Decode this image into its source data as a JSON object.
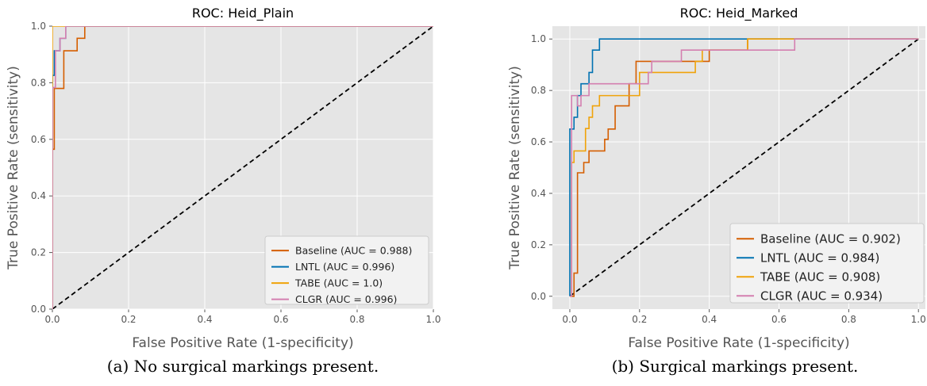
{
  "captions": {
    "a": "(a) No surgical markings present.",
    "b": "(b) Surgical markings present."
  },
  "chart_data": [
    {
      "type": "line",
      "title": "ROC: Heid_Plain",
      "xlabel": "False Positive Rate (1-specificity)",
      "ylabel": "True Positive Rate (sensitivity)",
      "xlim": [
        0,
        1
      ],
      "ylim": [
        0,
        1
      ],
      "xticks": [
        "0.0",
        "0.2",
        "0.4",
        "0.6",
        "0.8",
        "1.0"
      ],
      "yticks": [
        "0.0",
        "0.2",
        "0.4",
        "0.6",
        "0.8",
        "1.0"
      ],
      "grid": true,
      "legend": "lower-right",
      "series": [
        {
          "name": "Baseline (AUC = 0.988)",
          "color": "#d55e00",
          "points": [
            [
              0,
              0
            ],
            [
              0,
              0.565
            ],
            [
              0.005,
              0.565
            ],
            [
              0.005,
              0.78
            ],
            [
              0.03,
              0.78
            ],
            [
              0.03,
              0.913
            ],
            [
              0.065,
              0.913
            ],
            [
              0.065,
              0.957
            ],
            [
              0.085,
              0.957
            ],
            [
              0.085,
              1.0
            ],
            [
              1,
              1
            ]
          ]
        },
        {
          "name": "LNTL (AUC = 0.996)",
          "color": "#0072b2",
          "points": [
            [
              0,
              0
            ],
            [
              0,
              0.826
            ],
            [
              0.005,
              0.826
            ],
            [
              0.005,
              0.913
            ],
            [
              0.02,
              0.913
            ],
            [
              0.02,
              0.957
            ],
            [
              0.035,
              0.957
            ],
            [
              0.035,
              1.0
            ],
            [
              1,
              1
            ]
          ]
        },
        {
          "name": "TABE (AUC = 1.0)",
          "color": "#f0a30a",
          "points": [
            [
              0,
              0
            ],
            [
              0,
              1.0
            ],
            [
              1,
              1
            ]
          ]
        },
        {
          "name": "CLGR (AUC = 0.996)",
          "color": "#d47fb0",
          "points": [
            [
              0,
              0
            ],
            [
              0,
              0.783
            ],
            [
              0.008,
              0.783
            ],
            [
              0.008,
              0.913
            ],
            [
              0.02,
              0.913
            ],
            [
              0.02,
              0.957
            ],
            [
              0.035,
              0.957
            ],
            [
              0.035,
              1.0
            ],
            [
              1,
              1
            ]
          ]
        }
      ]
    },
    {
      "type": "line",
      "title": "ROC: Heid_Marked",
      "xlabel": "False Positive Rate (1-specificity)",
      "ylabel": "True Positive Rate (sensitivity)",
      "xlim": [
        -0.05,
        1.02
      ],
      "ylim": [
        -0.05,
        1.05
      ],
      "xticks": [
        "0.0",
        "0.2",
        "0.4",
        "0.6",
        "0.8",
        "1.0"
      ],
      "yticks": [
        "0.0",
        "0.2",
        "0.4",
        "0.6",
        "0.8",
        "1.0"
      ],
      "grid": true,
      "legend": "lower-right",
      "series": [
        {
          "name": "Baseline (AUC = 0.902)",
          "color": "#d55e00",
          "points": [
            [
              0,
              0
            ],
            [
              0.012,
              0
            ],
            [
              0.012,
              0.09
            ],
            [
              0.022,
              0.09
            ],
            [
              0.022,
              0.48
            ],
            [
              0.04,
              0.48
            ],
            [
              0.04,
              0.52
            ],
            [
              0.055,
              0.52
            ],
            [
              0.055,
              0.565
            ],
            [
              0.1,
              0.565
            ],
            [
              0.1,
              0.61
            ],
            [
              0.11,
              0.61
            ],
            [
              0.11,
              0.65
            ],
            [
              0.13,
              0.65
            ],
            [
              0.13,
              0.74
            ],
            [
              0.17,
              0.74
            ],
            [
              0.17,
              0.826
            ],
            [
              0.19,
              0.826
            ],
            [
              0.19,
              0.913
            ],
            [
              0.4,
              0.913
            ],
            [
              0.4,
              0.957
            ],
            [
              0.51,
              0.957
            ],
            [
              0.51,
              1.0
            ],
            [
              1,
              1
            ]
          ]
        },
        {
          "name": "LNTL (AUC = 0.984)",
          "color": "#0072b2",
          "points": [
            [
              0,
              0
            ],
            [
              0,
              0.65
            ],
            [
              0.012,
              0.65
            ],
            [
              0.012,
              0.696
            ],
            [
              0.022,
              0.696
            ],
            [
              0.022,
              0.78
            ],
            [
              0.032,
              0.78
            ],
            [
              0.032,
              0.826
            ],
            [
              0.055,
              0.826
            ],
            [
              0.055,
              0.87
            ],
            [
              0.065,
              0.87
            ],
            [
              0.065,
              0.957
            ],
            [
              0.085,
              0.957
            ],
            [
              0.085,
              1.0
            ],
            [
              1,
              1
            ]
          ]
        },
        {
          "name": "TABE (AUC = 0.908)",
          "color": "#f0a30a",
          "points": [
            [
              0,
              0
            ],
            [
              0.005,
              0
            ],
            [
              0.005,
              0.52
            ],
            [
              0.012,
              0.52
            ],
            [
              0.012,
              0.565
            ],
            [
              0.045,
              0.565
            ],
            [
              0.045,
              0.652
            ],
            [
              0.055,
              0.652
            ],
            [
              0.055,
              0.696
            ],
            [
              0.065,
              0.696
            ],
            [
              0.065,
              0.74
            ],
            [
              0.085,
              0.74
            ],
            [
              0.085,
              0.78
            ],
            [
              0.2,
              0.78
            ],
            [
              0.2,
              0.87
            ],
            [
              0.36,
              0.87
            ],
            [
              0.36,
              0.913
            ],
            [
              0.38,
              0.913
            ],
            [
              0.38,
              0.957
            ],
            [
              0.51,
              0.957
            ],
            [
              0.51,
              1.0
            ],
            [
              1,
              1
            ]
          ]
        },
        {
          "name": "CLGR (AUC = 0.934)",
          "color": "#d47fb0",
          "points": [
            [
              0,
              0
            ],
            [
              0.005,
              0
            ],
            [
              0.005,
              0.78
            ],
            [
              0.022,
              0.78
            ],
            [
              0.022,
              0.74
            ],
            [
              0.032,
              0.74
            ],
            [
              0.032,
              0.78
            ],
            [
              0.055,
              0.78
            ],
            [
              0.055,
              0.826
            ],
            [
              0.225,
              0.826
            ],
            [
              0.225,
              0.87
            ],
            [
              0.235,
              0.87
            ],
            [
              0.235,
              0.913
            ],
            [
              0.32,
              0.913
            ],
            [
              0.32,
              0.957
            ],
            [
              0.645,
              0.957
            ],
            [
              0.645,
              1.0
            ],
            [
              1,
              1
            ]
          ]
        }
      ]
    }
  ]
}
